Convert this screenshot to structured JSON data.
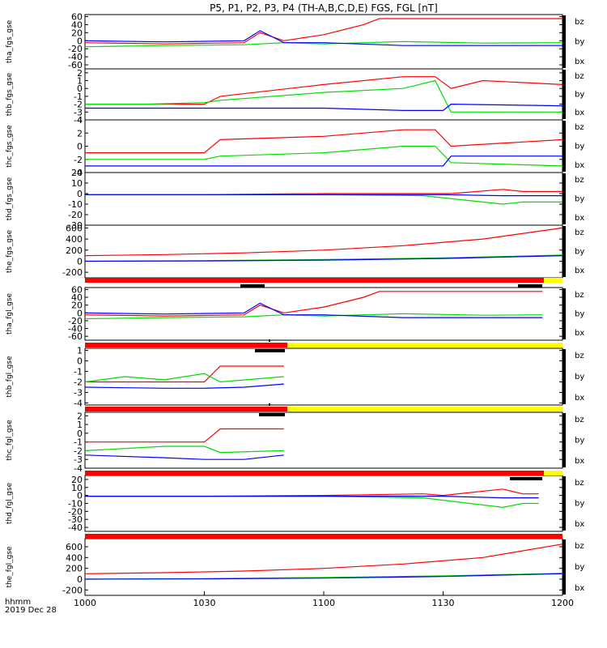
{
  "title": "P5, P1, P2, P3, P4 (TH-A,B,C,D,E) FGS, FGL [nT]",
  "time_axis_label": "hhmm",
  "date_label": "2019 Dec 28",
  "x_ticks": [
    "1000",
    "1030",
    "1100",
    "1130",
    "1200"
  ],
  "colors": {
    "bz": "#ff0000",
    "by": "#00dd00",
    "bx": "#0000ff",
    "bar_red": "#ff0000",
    "bar_yellow": "#ffff00",
    "bar_black": "#000000"
  },
  "chart_data": {
    "type": "line",
    "x_range": [
      "10:00",
      "12:00"
    ],
    "panels": [
      {
        "ylabel": "tha_fgs_gse",
        "ylim": [
          -70,
          65
        ],
        "yticks": [
          "60",
          "40",
          "20",
          "0",
          "-20",
          "-40",
          "-60"
        ],
        "series": [
          {
            "name": "bz",
            "x": [
              "10:00",
              "10:20",
              "10:40",
              "10:44",
              "10:50",
              "11:00",
              "11:10",
              "11:14",
              "11:20",
              "11:40",
              "12:00"
            ],
            "y": [
              -5,
              -8,
              -5,
              20,
              0,
              15,
              40,
              55,
              55,
              55,
              55
            ]
          },
          {
            "name": "by",
            "x": [
              "10:00",
              "10:20",
              "10:40",
              "10:50",
              "11:00",
              "11:20",
              "11:40",
              "12:00"
            ],
            "y": [
              -15,
              -12,
              -10,
              -5,
              -8,
              -2,
              -6,
              -5
            ]
          },
          {
            "name": "bx",
            "x": [
              "10:00",
              "10:20",
              "10:40",
              "10:44",
              "10:50",
              "11:00",
              "11:20",
              "11:40",
              "12:00"
            ],
            "y": [
              0,
              -3,
              0,
              25,
              -5,
              -5,
              -12,
              -12,
              -12
            ]
          }
        ]
      },
      {
        "ylabel": "thb_fgs_gse",
        "ylim": [
          -4,
          2.5
        ],
        "yticks": [
          "2",
          "1",
          "0",
          "-1",
          "-2",
          "-3",
          "-4"
        ],
        "series": [
          {
            "name": "bz",
            "x": [
              "10:00",
              "10:30",
              "10:34",
              "11:00",
              "11:20",
              "11:28",
              "11:32",
              "11:40",
              "12:00"
            ],
            "y": [
              -2,
              -2,
              -1,
              0.5,
              1.5,
              1.5,
              0,
              1,
              0.5
            ]
          },
          {
            "name": "by",
            "x": [
              "10:00",
              "10:15",
              "10:30",
              "10:34",
              "11:00",
              "11:20",
              "11:28",
              "11:32",
              "12:00"
            ],
            "y": [
              -2,
              -2,
              -1.8,
              -1.5,
              -0.5,
              0,
              1,
              -3,
              -3
            ]
          },
          {
            "name": "bx",
            "x": [
              "10:00",
              "10:30",
              "11:00",
              "11:20",
              "11:30",
              "11:32",
              "12:00"
            ],
            "y": [
              -2.5,
              -2.5,
              -2.5,
              -2.8,
              -2.8,
              -2,
              -2.2
            ]
          }
        ]
      },
      {
        "ylabel": "thc_fgs_gse",
        "ylim": [
          -4,
          4
        ],
        "yticks": [
          "4",
          "2",
          "0",
          "-2",
          "-4"
        ],
        "series": [
          {
            "name": "bz",
            "x": [
              "10:00",
              "10:30",
              "10:34",
              "11:00",
              "11:20",
              "11:28",
              "11:32",
              "12:00"
            ],
            "y": [
              -1,
              -1,
              1,
              1.5,
              2.5,
              2.5,
              0,
              1
            ]
          },
          {
            "name": "by",
            "x": [
              "10:00",
              "10:30",
              "10:34",
              "11:00",
              "11:20",
              "11:28",
              "11:32",
              "12:00"
            ],
            "y": [
              -2,
              -2,
              -1.5,
              -1,
              0,
              0,
              -2.5,
              -3
            ]
          },
          {
            "name": "bx",
            "x": [
              "10:00",
              "10:30",
              "11:00",
              "11:30",
              "11:32",
              "12:00"
            ],
            "y": [
              -3,
              -3,
              -3,
              -3,
              -1.5,
              -1.5
            ]
          }
        ]
      },
      {
        "ylabel": "thd_fgs_gse",
        "ylim": [
          -30,
          20
        ],
        "yticks": [
          "20",
          "10",
          "0",
          "-10",
          "-20",
          "-30"
        ],
        "series": [
          {
            "name": "bz",
            "x": [
              "10:00",
              "10:30",
              "11:00",
              "11:28",
              "11:32",
              "11:45",
              "11:50",
              "12:00"
            ],
            "y": [
              -1,
              -1,
              0,
              0,
              0,
              4,
              2,
              2
            ]
          },
          {
            "name": "by",
            "x": [
              "10:00",
              "10:30",
              "11:00",
              "11:25",
              "11:45",
              "11:50",
              "12:00"
            ],
            "y": [
              -1,
              -1,
              -1,
              -2,
              -10,
              -8,
              -8
            ]
          },
          {
            "name": "bx",
            "x": [
              "10:00",
              "10:30",
              "11:00",
              "11:30",
              "11:45",
              "12:00"
            ],
            "y": [
              -1,
              -1,
              -1,
              -1,
              -2,
              -2
            ]
          }
        ]
      },
      {
        "ylabel": "the_fgs_gse",
        "ylim": [
          -300,
          650
        ],
        "yticks": [
          "600",
          "400",
          "200",
          "0",
          "-200"
        ],
        "series": [
          {
            "name": "bz",
            "x": [
              "10:00",
              "10:20",
              "10:40",
              "11:00",
              "11:20",
              "11:40",
              "12:00"
            ],
            "y": [
              100,
              120,
              150,
              200,
              280,
              400,
              600
            ]
          },
          {
            "name": "by",
            "x": [
              "10:00",
              "10:30",
              "11:00",
              "11:30",
              "12:00"
            ],
            "y": [
              0,
              10,
              30,
              60,
              110
            ]
          },
          {
            "name": "bx",
            "x": [
              "10:00",
              "10:30",
              "11:00",
              "11:30",
              "12:00"
            ],
            "y": [
              0,
              5,
              20,
              50,
              100
            ]
          }
        ]
      },
      {
        "ylabel": "tha_fgl_gse",
        "ylim": [
          -70,
          65
        ],
        "yticks": [
          "60",
          "40",
          "20",
          "0",
          "-20",
          "-40",
          "-60"
        ],
        "series": [
          {
            "name": "bz",
            "x": [
              "10:00",
              "10:20",
              "10:40",
              "10:44",
              "10:50",
              "11:00",
              "11:10",
              "11:14",
              "11:20",
              "11:40",
              "11:55"
            ],
            "y": [
              -5,
              -8,
              -5,
              20,
              0,
              15,
              40,
              55,
              55,
              55,
              55
            ]
          },
          {
            "name": "by",
            "x": [
              "10:00",
              "10:20",
              "10:40",
              "10:50",
              "11:00",
              "11:20",
              "11:40",
              "11:55"
            ],
            "y": [
              -15,
              -12,
              -10,
              -5,
              -8,
              -2,
              -6,
              -5
            ]
          },
          {
            "name": "bx",
            "x": [
              "10:00",
              "10:20",
              "10:40",
              "10:44",
              "10:50",
              "11:00",
              "11:20",
              "11:40",
              "11:55"
            ],
            "y": [
              0,
              -3,
              0,
              25,
              -5,
              -5,
              -12,
              -12,
              -12
            ]
          }
        ]
      },
      {
        "ylabel": "thb_fgl_gse",
        "ylim": [
          -4.2,
          1.2
        ],
        "yticks": [
          "1",
          "0",
          "-1",
          "-2",
          "-3",
          "-4"
        ],
        "series": [
          {
            "name": "bz",
            "x": [
              "10:00",
              "10:10",
              "10:30",
              "10:34",
              "10:40",
              "10:50"
            ],
            "y": [
              -2,
              -2,
              -2,
              -0.5,
              -0.5,
              -0.5
            ]
          },
          {
            "name": "by",
            "x": [
              "10:00",
              "10:10",
              "10:20",
              "10:30",
              "10:34",
              "10:50"
            ],
            "y": [
              -2,
              -1.5,
              -1.8,
              -1.2,
              -2,
              -1.5
            ]
          },
          {
            "name": "bx",
            "x": [
              "10:00",
              "10:20",
              "10:30",
              "10:40",
              "10:50"
            ],
            "y": [
              -2.5,
              -2.6,
              -2.6,
              -2.5,
              -2.2
            ]
          }
        ]
      },
      {
        "ylabel": "thc_fgl_gse",
        "ylim": [
          -4,
          2.4
        ],
        "yticks": [
          "2",
          "1",
          "0",
          "-1",
          "-2",
          "-3",
          "-4"
        ],
        "series": [
          {
            "name": "bz",
            "x": [
              "10:00",
              "10:20",
              "10:30",
              "10:34",
              "10:50"
            ],
            "y": [
              -1,
              -1,
              -1,
              0.5,
              0.5
            ]
          },
          {
            "name": "by",
            "x": [
              "10:00",
              "10:20",
              "10:30",
              "10:34",
              "10:50"
            ],
            "y": [
              -2,
              -1.5,
              -1.5,
              -2.2,
              -2
            ]
          },
          {
            "name": "bx",
            "x": [
              "10:00",
              "10:20",
              "10:30",
              "10:40",
              "10:50"
            ],
            "y": [
              -2.5,
              -2.8,
              -3,
              -3,
              -2.5
            ]
          }
        ]
      },
      {
        "ylabel": "thd_fgl_gse",
        "ylim": [
          -45,
          25
        ],
        "yticks": [
          "20",
          "10",
          "0",
          "-10",
          "-20",
          "-30",
          "-40"
        ],
        "series": [
          {
            "name": "bz",
            "x": [
              "10:00",
              "10:30",
              "11:00",
              "11:25",
              "11:30",
              "11:45",
              "11:50",
              "11:54"
            ],
            "y": [
              -1,
              -1,
              0,
              2,
              0,
              8,
              2,
              2
            ]
          },
          {
            "name": "by",
            "x": [
              "10:00",
              "10:30",
              "11:00",
              "11:25",
              "11:45",
              "11:50",
              "11:54"
            ],
            "y": [
              -1,
              -1,
              -1,
              -3,
              -15,
              -10,
              -10
            ]
          },
          {
            "name": "bx",
            "x": [
              "10:00",
              "10:30",
              "11:00",
              "11:30",
              "11:45",
              "11:54"
            ],
            "y": [
              -1,
              -1,
              -1,
              -1,
              -3,
              -3
            ]
          }
        ]
      },
      {
        "ylabel": "the_fgl_gse",
        "ylim": [
          -300,
          750
        ],
        "yticks": [
          "600",
          "400",
          "200",
          "0",
          "-200"
        ],
        "series": [
          {
            "name": "bz",
            "x": [
              "10:00",
              "10:20",
              "10:40",
              "11:00",
              "11:20",
              "11:40",
              "12:00"
            ],
            "y": [
              100,
              120,
              150,
              200,
              280,
              400,
              650
            ]
          },
          {
            "name": "by",
            "x": [
              "10:00",
              "10:30",
              "11:00",
              "11:30",
              "12:00"
            ],
            "y": [
              0,
              10,
              30,
              60,
              110
            ]
          },
          {
            "name": "bx",
            "x": [
              "10:00",
              "10:30",
              "11:00",
              "11:30",
              "12:00"
            ],
            "y": [
              0,
              5,
              20,
              50,
              100
            ]
          }
        ]
      }
    ]
  }
}
